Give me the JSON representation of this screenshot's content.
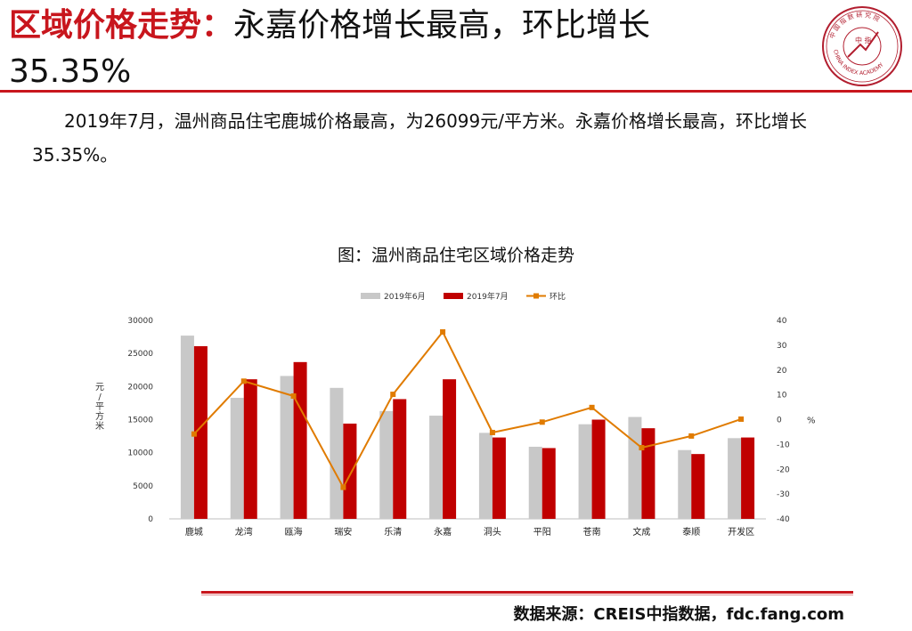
{
  "header": {
    "title_red": "区域价格走势：",
    "title_black": "永嘉价格增长最高，环比增长",
    "title_line2": "35.35%"
  },
  "logo": {
    "icon": "china-index-academy-seal-icon",
    "center_text": "中 指",
    "ring_text": "CHINA INDEX ACADEMY",
    "top_text": "中 国 指 数 研 究 院"
  },
  "paragraph": "2019年7月，温州商品住宅鹿城价格最高，为26099元/平方米。永嘉价格增长最高，环比增长35.35%。",
  "chart_title": "图：温州商品住宅区域价格走势",
  "chart_data": {
    "type": "bar",
    "categories": [
      "鹿城",
      "龙湾",
      "瓯海",
      "瑞安",
      "乐清",
      "永嘉",
      "洞头",
      "平阳",
      "苍南",
      "文成",
      "泰顺",
      "开发区"
    ],
    "series": [
      {
        "name": "2019年6月",
        "type": "bar",
        "axis": "left",
        "color": "#c8c8c8",
        "values": [
          27700,
          18300,
          21600,
          19800,
          16300,
          15600,
          13000,
          10900,
          14300,
          15400,
          10400,
          12200
        ]
      },
      {
        "name": "2019年7月",
        "type": "bar",
        "axis": "left",
        "color": "#c00000",
        "values": [
          26099,
          21100,
          23700,
          14400,
          18100,
          21100,
          12300,
          10700,
          15000,
          13700,
          9800,
          12300
        ]
      },
      {
        "name": "环比",
        "type": "line",
        "axis": "right",
        "color": "#e07b00",
        "values": [
          -5.8,
          15.5,
          9.5,
          -27.3,
          10.2,
          35.35,
          -5.2,
          -1.0,
          4.9,
          -11.3,
          -6.6,
          0.2
        ]
      }
    ],
    "ylabel": "元/平方米",
    "y2label": "%",
    "ylim": [
      0,
      30000
    ],
    "y2lim": [
      -40,
      40
    ],
    "yticks": [
      0,
      5000,
      10000,
      15000,
      20000,
      25000,
      30000
    ],
    "y2ticks": [
      -40,
      -30,
      -20,
      -10,
      0,
      10,
      20,
      30,
      40
    ],
    "grid": false,
    "legend_position": "top"
  },
  "footer": {
    "source": "数据来源：CREIS中指数据，fdc.fang.com"
  }
}
